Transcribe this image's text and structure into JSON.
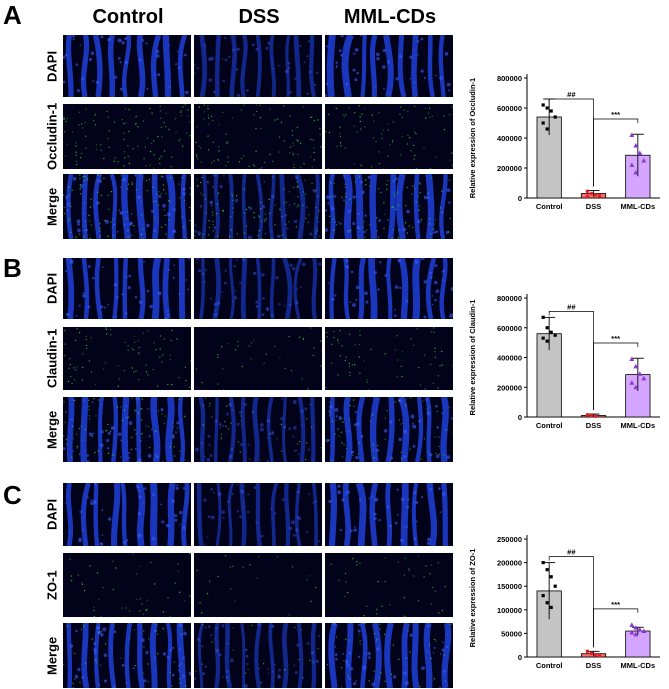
{
  "column_headers": [
    "Control",
    "DSS",
    "MML-CDs"
  ],
  "panels": [
    {
      "letter": "A",
      "rows": [
        "DAPI",
        "Occludin-1",
        "Merge"
      ]
    },
    {
      "letter": "B",
      "rows": [
        "DAPI",
        "Claudin-1",
        "Merge"
      ]
    },
    {
      "letter": "C",
      "rows": [
        "DAPI",
        "ZO-1",
        "Merge"
      ]
    }
  ],
  "colors": {
    "dapi": "#1f3fd9",
    "marker": "#36d23a",
    "background": "#02031a",
    "control_bar": "#c4c4c4",
    "dss_bar": "#ff6a6a",
    "mml_bar": "#d5a6ff",
    "dss_point": "#e02020",
    "mml_point": "#8a3ad0"
  },
  "chart_data": [
    {
      "type": "bar",
      "categories": [
        "Control",
        "DSS",
        "MML-CDs"
      ],
      "values": [
        540000,
        30000,
        285000
      ],
      "errors": [
        120000,
        20000,
        140000
      ],
      "points": [
        [
          620000,
          600000,
          580000,
          540000,
          500000,
          460000
        ],
        [
          45000,
          30000,
          20000,
          15000,
          10000
        ],
        [
          420000,
          350000,
          300000,
          250000,
          220000,
          170000
        ]
      ],
      "ylabel": "Relative expression of Occludin-1",
      "yticks": [
        "0",
        "200000",
        "400000",
        "600000",
        "800000"
      ],
      "ylim": [
        0,
        800000
      ],
      "sig_labels": [
        "##",
        "***"
      ],
      "grid": false
    },
    {
      "type": "bar",
      "categories": [
        "Control",
        "DSS",
        "MML-CDs"
      ],
      "values": [
        560000,
        10000,
        285000
      ],
      "errors": [
        110000,
        10000,
        110000
      ],
      "points": [
        [
          670000,
          600000,
          570000,
          550000,
          530000,
          510000
        ],
        [
          15000,
          10000,
          5000
        ],
        [
          390000,
          340000,
          290000,
          260000,
          230000,
          200000
        ]
      ],
      "ylabel": "Relative expression of Claudin-1",
      "yticks": [
        "0",
        "200000",
        "400000",
        "600000",
        "800000"
      ],
      "ylim": [
        0,
        800000
      ],
      "sig_labels": [
        "##",
        "***"
      ],
      "grid": false
    },
    {
      "type": "bar",
      "categories": [
        "Control",
        "DSS",
        "MML-CDs"
      ],
      "values": [
        140000,
        7000,
        55000
      ],
      "errors": [
        60000,
        5000,
        8000
      ],
      "points": [
        [
          200000,
          185000,
          170000,
          150000,
          130000,
          115000,
          105000
        ],
        [
          12000,
          8000,
          5000,
          3000
        ],
        [
          68000,
          62000,
          58000,
          55000,
          52000,
          48000
        ]
      ],
      "ylabel": "Relative expression of ZO-1",
      "yticks": [
        "0",
        "50000",
        "100000",
        "150000",
        "200000",
        "250000"
      ],
      "ylim": [
        0,
        250000
      ],
      "sig_labels": [
        "##",
        "***"
      ],
      "grid": false
    }
  ]
}
